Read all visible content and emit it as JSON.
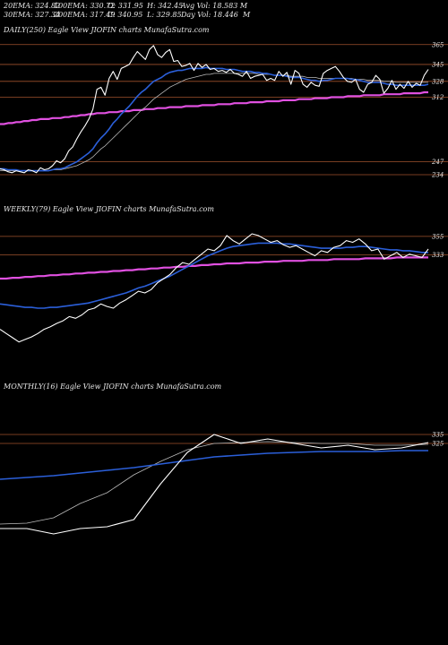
{
  "header": {
    "row1": [
      "20EMA: 324.82",
      "100EMA: 330.72",
      "O: 331.95",
      "H: 342.45",
      "Avg Vol: 18.583 M"
    ],
    "row2": [
      "30EMA: 327.34",
      "200EMA: 317.49",
      "C: 340.95",
      "L: 329.85",
      "Day Vol: 18.446  M"
    ]
  },
  "colors": {
    "background": "#000000",
    "price": "#ffffff",
    "ema_fast": "#2b5fd9",
    "ema_long": "#e050e0",
    "level": "#a0522d",
    "ema_grey": "#bbbbbb"
  },
  "chart_data": [
    {
      "type": "line",
      "label": "DAILY(250) Eagle  View  JIOFIN  charts MunafaSutra.com",
      "levels": [
        365,
        345,
        328,
        312,
        247,
        234
      ],
      "ylim": [
        225,
        372
      ],
      "series": [
        {
          "name": "price",
          "values": [
            240,
            239,
            237,
            236,
            238,
            237,
            236,
            239,
            238,
            236,
            241,
            239,
            240,
            243,
            248,
            246,
            250,
            258,
            262,
            270,
            277,
            283,
            290,
            300,
            320,
            322,
            314,
            331,
            338,
            330,
            341,
            343,
            345,
            352,
            358,
            354,
            350,
            360,
            364,
            355,
            352,
            357,
            360,
            348,
            349,
            343,
            344,
            346,
            339,
            346,
            342,
            345,
            340,
            341,
            338,
            339,
            337,
            340,
            336,
            335,
            333,
            338,
            331,
            333,
            334,
            335,
            329,
            331,
            329,
            338,
            333,
            337,
            325,
            339,
            336,
            325,
            322,
            327,
            324,
            323,
            336,
            339,
            341,
            343,
            338,
            332,
            328,
            327,
            330,
            320,
            317,
            325,
            327,
            334,
            330,
            316,
            321,
            329,
            320,
            325,
            321,
            328,
            322,
            326,
            324,
            334,
            340
          ]
        },
        {
          "name": "ema_fast",
          "values": [
            240,
            240,
            239,
            239,
            239,
            238,
            238,
            238,
            238,
            238,
            238,
            238,
            238,
            239,
            240,
            240,
            241,
            243,
            245,
            247,
            250,
            253,
            256,
            260,
            266,
            271,
            275,
            280,
            286,
            290,
            295,
            299,
            303,
            308,
            313,
            317,
            320,
            324,
            328,
            330,
            332,
            335,
            337,
            338,
            339,
            339,
            340,
            341,
            341,
            341,
            341,
            342,
            341,
            341,
            341,
            341,
            340,
            340,
            340,
            339,
            338,
            338,
            338,
            337,
            337,
            336,
            336,
            335,
            334,
            334,
            334,
            333,
            332,
            332,
            332,
            331,
            330,
            329,
            329,
            328,
            329,
            329,
            330,
            331,
            331,
            331,
            331,
            330,
            330,
            329,
            328,
            327,
            327,
            327,
            327,
            326,
            325,
            325,
            324,
            324,
            324,
            324,
            324,
            324,
            324,
            324,
            325
          ]
        },
        {
          "name": "ema_grey",
          "values": [
            238,
            238,
            238,
            238,
            238,
            238,
            238,
            238,
            238,
            238,
            238,
            238,
            238,
            239,
            239,
            239,
            240,
            241,
            242,
            243,
            245,
            247,
            249,
            252,
            256,
            260,
            263,
            267,
            271,
            275,
            279,
            283,
            287,
            291,
            295,
            299,
            302,
            306,
            310,
            313,
            316,
            319,
            322,
            324,
            326,
            328,
            330,
            331,
            332,
            333,
            334,
            335,
            335,
            336,
            336,
            336,
            336,
            336,
            336,
            336,
            336,
            336,
            336,
            336,
            335,
            335,
            335,
            335,
            334,
            334,
            334,
            334,
            333,
            333,
            333,
            333,
            332,
            332,
            332,
            331,
            331,
            331,
            331,
            331,
            331,
            331,
            331,
            331,
            330,
            330,
            330,
            329,
            329,
            329,
            329,
            328,
            328,
            328,
            327,
            327,
            327,
            327,
            327,
            327,
            327,
            327,
            327
          ]
        },
        {
          "name": "ema_long",
          "values": [
            285,
            285,
            286,
            286,
            287,
            287,
            288,
            288,
            289,
            289,
            290,
            290,
            290,
            291,
            291,
            291,
            292,
            292,
            293,
            293,
            294,
            294,
            295,
            295,
            296,
            296,
            296,
            297,
            297,
            297,
            298,
            298,
            298,
            299,
            299,
            299,
            300,
            300,
            300,
            301,
            301,
            301,
            302,
            302,
            302,
            302,
            303,
            303,
            303,
            303,
            304,
            304,
            304,
            304,
            305,
            305,
            305,
            305,
            306,
            306,
            306,
            306,
            307,
            307,
            307,
            307,
            308,
            308,
            308,
            308,
            309,
            309,
            309,
            309,
            310,
            310,
            310,
            310,
            311,
            311,
            311,
            311,
            312,
            312,
            312,
            312,
            313,
            313,
            313,
            313,
            314,
            314,
            314,
            314,
            314,
            315,
            315,
            315,
            315,
            315,
            316,
            316,
            316,
            316,
            316,
            317,
            317
          ]
        }
      ]
    },
    {
      "type": "line",
      "label": "WEEKLY(79) Eagle  View  JIOFIN  charts MunafaSutra.com",
      "levels": [
        355,
        333
      ],
      "ylim": [
        200,
        375
      ],
      "series": [
        {
          "name": "price",
          "values": [
            245,
            240,
            235,
            230,
            233,
            236,
            240,
            245,
            248,
            252,
            255,
            260,
            258,
            262,
            268,
            270,
            275,
            272,
            270,
            276,
            280,
            285,
            290,
            288,
            292,
            300,
            305,
            310,
            318,
            324,
            322,
            328,
            334,
            340,
            338,
            344,
            356,
            350,
            346,
            352,
            358,
            356,
            352,
            348,
            350,
            345,
            342,
            344,
            340,
            336,
            332,
            338,
            336,
            342,
            344,
            350,
            348,
            352,
            346,
            338,
            340,
            328,
            332,
            336,
            330,
            334,
            332,
            330,
            340
          ]
        },
        {
          "name": "ema_fast",
          "values": [
            275,
            274,
            273,
            272,
            271,
            271,
            270,
            270,
            271,
            271,
            272,
            273,
            274,
            275,
            276,
            278,
            280,
            282,
            284,
            286,
            288,
            291,
            294,
            296,
            299,
            302,
            305,
            308,
            312,
            316,
            320,
            324,
            328,
            332,
            335,
            338,
            341,
            343,
            344,
            345,
            346,
            347,
            347,
            347,
            347,
            346,
            346,
            345,
            344,
            343,
            342,
            341,
            341,
            341,
            341,
            342,
            342,
            343,
            343,
            342,
            341,
            340,
            339,
            339,
            338,
            338,
            337,
            336,
            336
          ]
        },
        {
          "name": "ema_long",
          "values": [
            305,
            305,
            306,
            306,
            307,
            307,
            308,
            308,
            309,
            309,
            310,
            310,
            311,
            311,
            312,
            312,
            313,
            313,
            314,
            314,
            315,
            315,
            316,
            316,
            317,
            317,
            318,
            318,
            319,
            319,
            320,
            320,
            321,
            321,
            322,
            322,
            323,
            323,
            323,
            324,
            324,
            324,
            325,
            325,
            325,
            326,
            326,
            326,
            326,
            327,
            327,
            327,
            327,
            328,
            328,
            328,
            328,
            328,
            329,
            329,
            329,
            329,
            329,
            330,
            330,
            330,
            330,
            330,
            330
          ]
        }
      ]
    },
    {
      "type": "line",
      "label": "MONTHLY(16) Eagle  View  JIOFIN  charts MunafaSutra.com",
      "levels": [
        335,
        325
      ],
      "ylim": [
        200,
        380
      ],
      "series": [
        {
          "name": "price",
          "values": [
            230,
            230,
            224,
            230,
            232,
            240,
            280,
            315,
            335,
            325,
            330,
            325,
            320,
            323,
            318,
            320,
            326
          ]
        },
        {
          "name": "ema_grey",
          "values": [
            235,
            236,
            242,
            258,
            270,
            290,
            305,
            318,
            325,
            326,
            327,
            326,
            325,
            325,
            323,
            323,
            324
          ]
        },
        {
          "name": "ema_fast",
          "values": [
            285,
            287,
            289,
            292,
            295,
            298,
            302,
            306,
            310,
            312,
            314,
            315,
            316,
            316,
            316,
            317,
            317
          ]
        }
      ]
    }
  ]
}
